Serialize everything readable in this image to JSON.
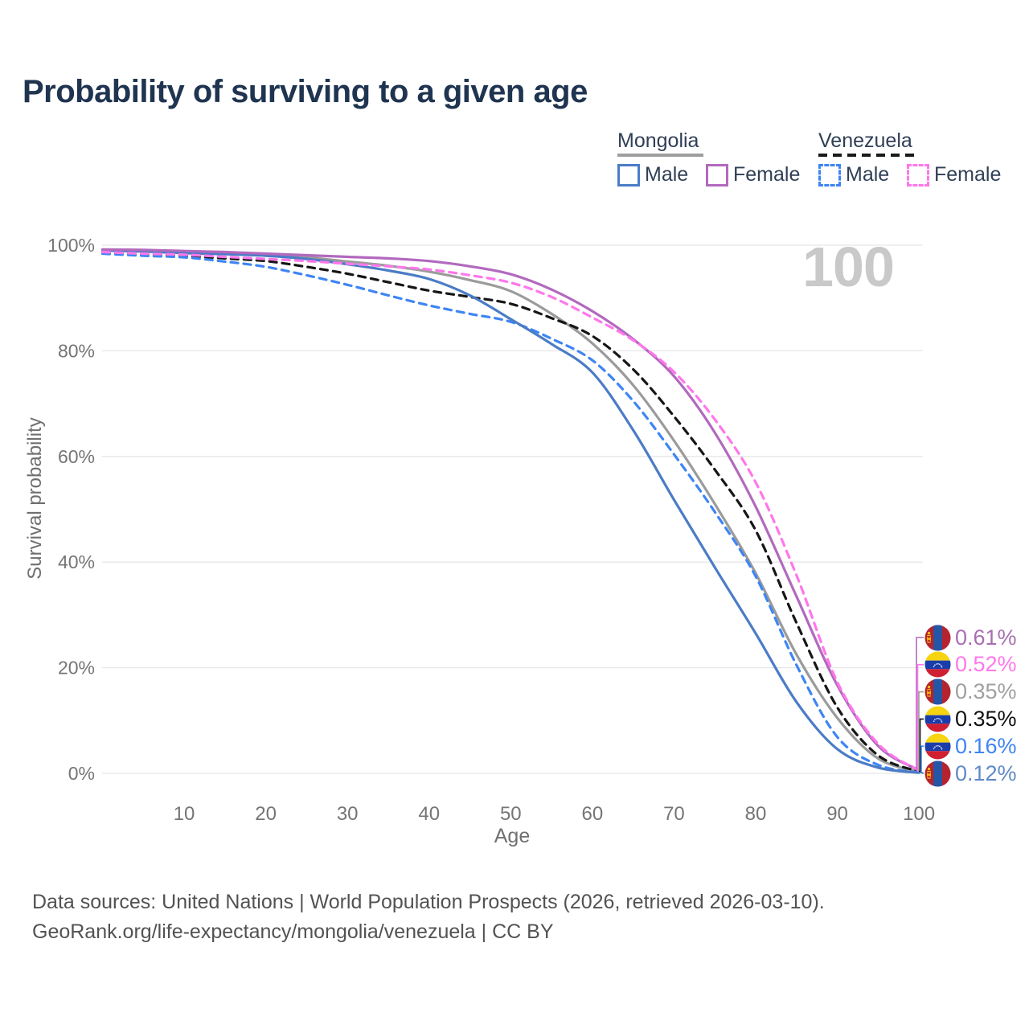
{
  "header": {
    "title": "Probability of surviving to a given age"
  },
  "legend": {
    "mongolia": {
      "label": "Mongolia",
      "male": "Male",
      "female": "Female"
    },
    "venezuela": {
      "label": "Venezuela",
      "male": "Male",
      "female": "Female"
    }
  },
  "footer": {
    "line1": "Data sources: United Nations | World Population Prospects (2026, retrieved 2026-03-10).",
    "line2": "GeoRank.org/life-expectancy/mongolia/venezuela | CC BY"
  },
  "chart_data": {
    "type": "line",
    "title": "Probability of surviving to a given age",
    "xlabel": "Age",
    "ylabel": "Survival probability",
    "xlim": [
      0,
      100
    ],
    "ylim": [
      0,
      100
    ],
    "grid": "horizontal",
    "legend_position": "top-right",
    "hover_age_label": "100",
    "x_ticks": [
      10,
      20,
      30,
      40,
      50,
      60,
      70,
      80,
      90,
      100
    ],
    "y_ticks": [
      {
        "value": 0,
        "label": "0%"
      },
      {
        "value": 20,
        "label": "20%"
      },
      {
        "value": 40,
        "label": "40%"
      },
      {
        "value": 60,
        "label": "60%"
      },
      {
        "value": 80,
        "label": "80%"
      },
      {
        "value": 100,
        "label": "100%"
      }
    ],
    "x": [
      0,
      5,
      10,
      15,
      20,
      25,
      30,
      35,
      40,
      45,
      50,
      55,
      60,
      65,
      70,
      75,
      80,
      85,
      90,
      95,
      100
    ],
    "series": [
      {
        "name": "Mongolia Female",
        "country": "Mongolia",
        "sex": "Female",
        "line": "solid",
        "color": "#b269be",
        "label_color": "#a76fb0",
        "end_label": "0.61%",
        "flag": "mongolia",
        "values": [
          99.2,
          99.1,
          98.9,
          98.7,
          98.4,
          98.1,
          97.8,
          97.5,
          97.0,
          96.0,
          94.5,
          91.6,
          87.5,
          82.2,
          75.2,
          64.5,
          50.5,
          33.5,
          16.7,
          5.2,
          0.61
        ]
      },
      {
        "name": "Venezuela Female",
        "country": "Venezuela",
        "sex": "Female",
        "line": "dashed",
        "color": "#ff77eb",
        "label_color": "#ff77eb",
        "end_label": "0.52%",
        "flag": "venezuela",
        "values": [
          98.7,
          98.4,
          98.2,
          97.8,
          97.4,
          97.0,
          96.5,
          96.0,
          95.4,
          94.3,
          92.9,
          90.2,
          86.3,
          82.0,
          76.0,
          67.0,
          55.1,
          37.5,
          17.3,
          5.6,
          0.52
        ]
      },
      {
        "name": "Mongolia",
        "country": "Mongolia",
        "sex": "Both",
        "line": "solid",
        "color": "#9b9b9b",
        "label_color": "#a0a0a0",
        "end_label": "0.35%",
        "flag": "mongolia",
        "values": [
          99.1,
          98.9,
          98.7,
          98.5,
          98.2,
          97.7,
          96.9,
          96.1,
          95.0,
          93.4,
          91.3,
          87.0,
          81.4,
          73.5,
          63.0,
          51.0,
          37.9,
          22.5,
          10.5,
          2.8,
          0.35
        ]
      },
      {
        "name": "Venezuela",
        "country": "Venezuela",
        "sex": "Both",
        "line": "dashed",
        "color": "#161616",
        "label_color": "#111111",
        "end_label": "0.35%",
        "flag": "venezuela",
        "values": [
          98.6,
          98.3,
          98.0,
          97.5,
          97.0,
          95.9,
          94.6,
          93.0,
          91.4,
          90.2,
          88.9,
          86.2,
          82.8,
          76.5,
          67.6,
          57.5,
          46.0,
          28.5,
          12.5,
          3.4,
          0.35
        ]
      },
      {
        "name": "Venezuela Male",
        "country": "Venezuela",
        "sex": "Male",
        "line": "dashed",
        "color": "#3e85f4",
        "label_color": "#3e85f4",
        "end_label": "0.16%",
        "flag": "venezuela",
        "values": [
          98.4,
          98.0,
          97.7,
          96.9,
          95.9,
          94.3,
          92.5,
          90.5,
          88.6,
          87.0,
          85.5,
          82.3,
          78.2,
          70.5,
          60.4,
          49.5,
          37.3,
          20.5,
          6.9,
          1.6,
          0.16
        ]
      },
      {
        "name": "Mongolia Male",
        "country": "Mongolia",
        "sex": "Male",
        "line": "solid",
        "color": "#4b7cc6",
        "label_color": "#6089c8",
        "end_label": "0.12%",
        "flag": "mongolia",
        "values": [
          99.0,
          98.8,
          98.5,
          98.3,
          98.0,
          97.4,
          96.4,
          95.2,
          93.6,
          90.5,
          86.0,
          81.3,
          75.9,
          65.0,
          51.8,
          39.0,
          26.5,
          13.5,
          4.6,
          1.1,
          0.12
        ]
      }
    ]
  }
}
